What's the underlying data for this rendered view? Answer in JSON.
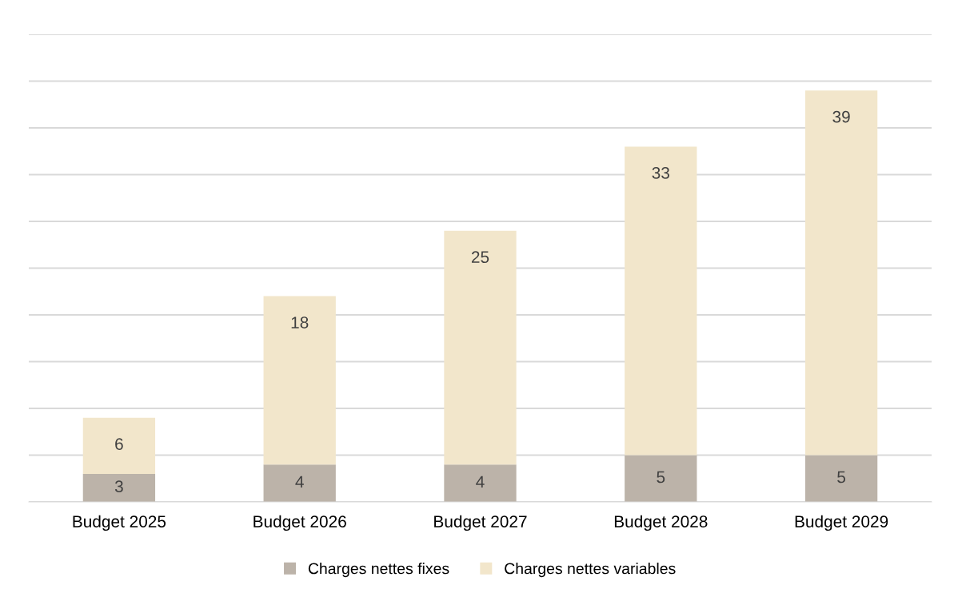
{
  "chart_data": {
    "type": "bar",
    "stacked": true,
    "categories": [
      "Budget 2025",
      "Budget 2026",
      "Budget 2027",
      "Budget 2028",
      "Budget 2029"
    ],
    "series": [
      {
        "name": "Charges nettes fixes",
        "color": "#bcb3a9",
        "values": [
          3,
          4,
          4,
          5,
          5
        ]
      },
      {
        "name": "Charges nettes variables",
        "color": "#f2e6cb",
        "values": [
          6,
          18,
          25,
          33,
          39
        ]
      }
    ],
    "ylim": [
      0,
      50
    ],
    "yticks": [
      {
        "value": 0,
        "label": null
      },
      {
        "value": 5,
        "label": null
      },
      {
        "value": 10,
        "label": null
      },
      {
        "value": 15,
        "label": null
      },
      {
        "value": 20,
        "label": null
      },
      {
        "value": 25,
        "label": null
      },
      {
        "value": 30,
        "label": null
      },
      {
        "value": 35,
        "label": null
      },
      {
        "value": 40,
        "label": null
      },
      {
        "value": 45,
        "label": null
      },
      {
        "value": 50,
        "label": null
      }
    ],
    "tick_labels": "x",
    "grid": "y",
    "legend": "bottom",
    "data_labels": true
  }
}
